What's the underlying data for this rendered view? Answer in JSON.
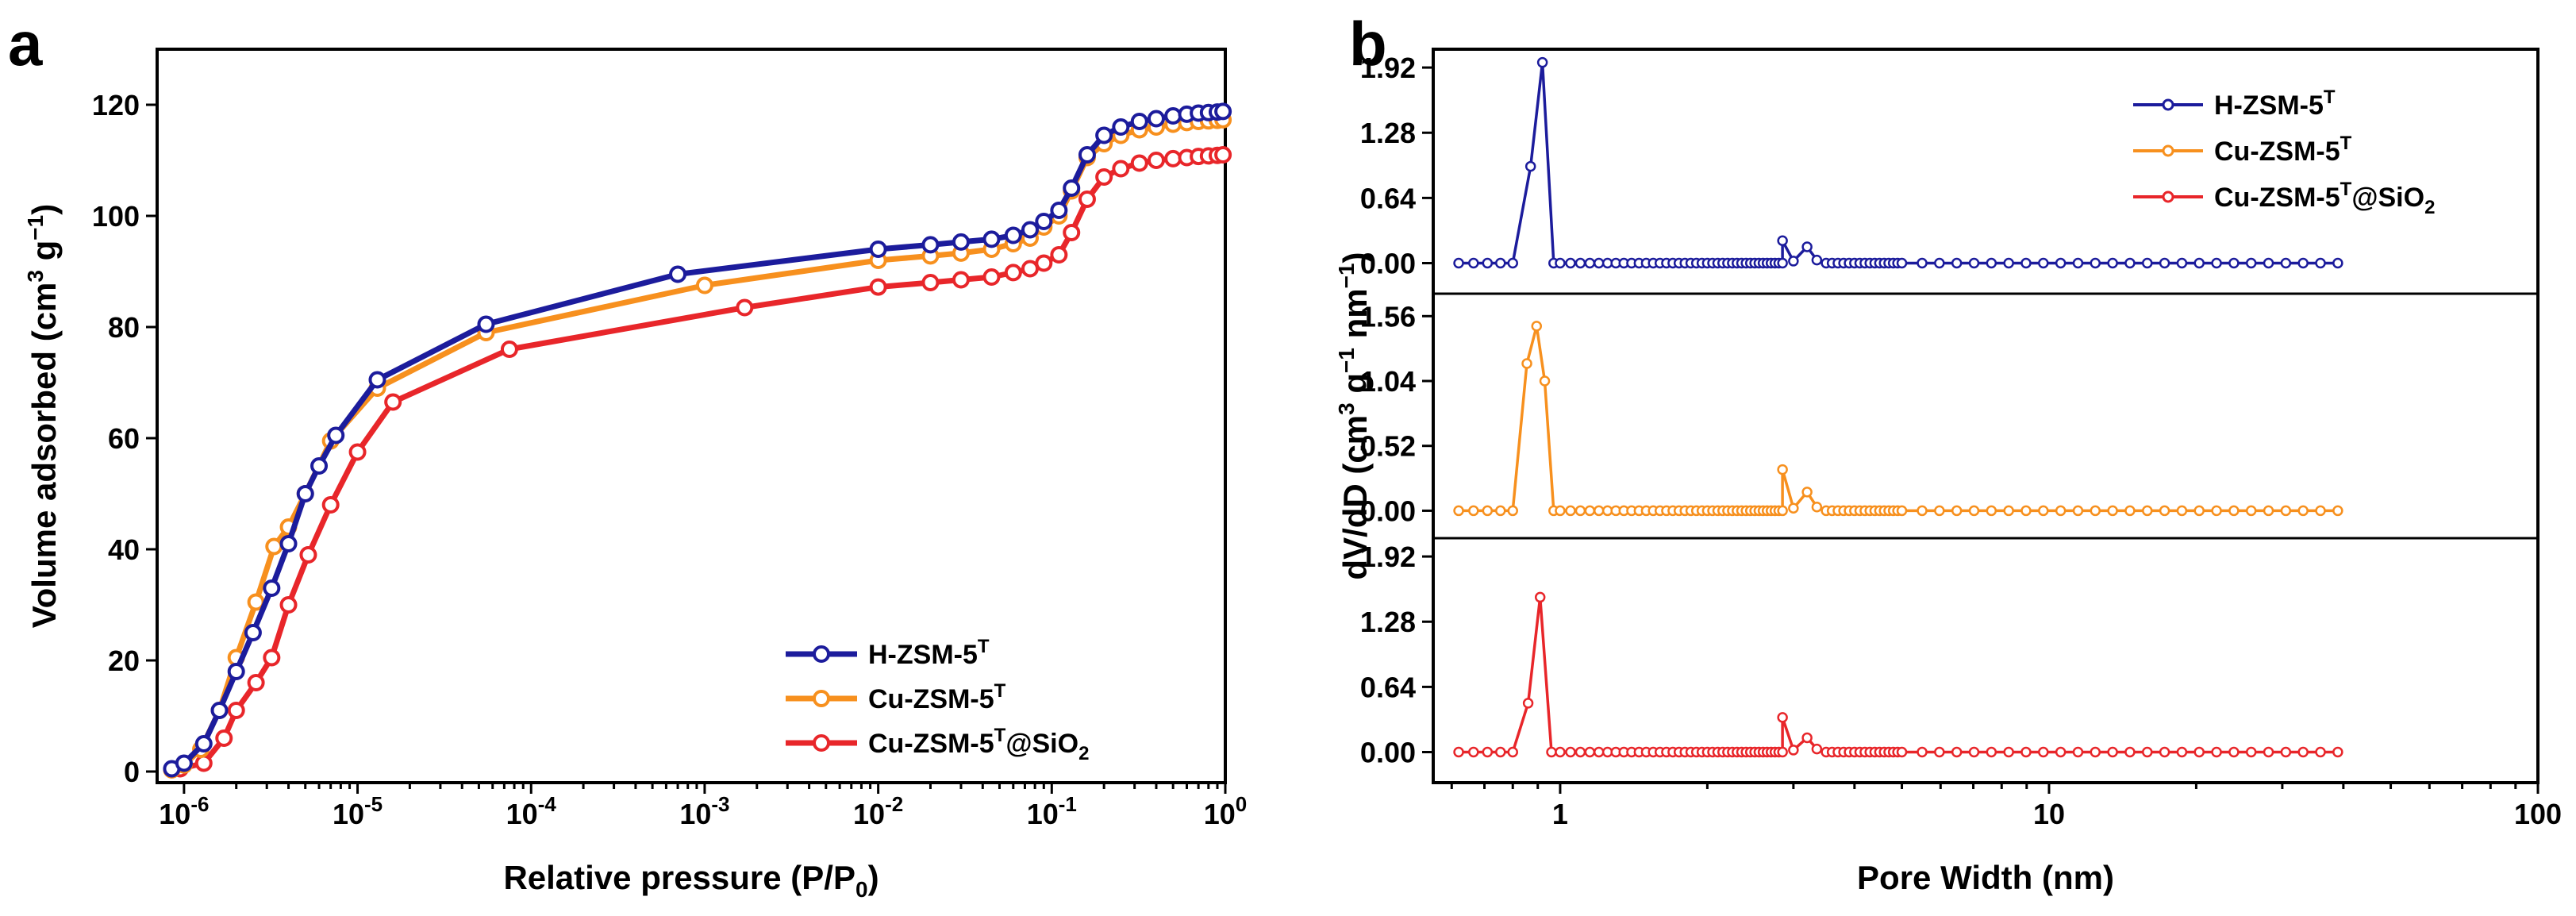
{
  "chart_data": [
    {
      "type": "line",
      "panel_label": "a",
      "title": "",
      "xlabel": "Relative pressure (P/P",
      "xlabel_sub": "0",
      "xlabel_end": ")",
      "ylabel": "Volume adsorbed (cm",
      "ylabel_sup": "3",
      "ylabel_mid": " g",
      "ylabel_sup2": "−1",
      "ylabel_end": ")",
      "xscale": "log",
      "xlim": [
        7e-07,
        1.0
      ],
      "ylim": [
        -2,
        130
      ],
      "x_ticks": [
        {
          "value": 1e-06,
          "base": "10",
          "exp": "-6"
        },
        {
          "value": 1e-05,
          "base": "10",
          "exp": "-5"
        },
        {
          "value": 0.0001,
          "base": "10",
          "exp": "-4"
        },
        {
          "value": 0.001,
          "base": "10",
          "exp": "-3"
        },
        {
          "value": 0.01,
          "base": "10",
          "exp": "-2"
        },
        {
          "value": 0.1,
          "base": "10",
          "exp": "-1"
        },
        {
          "value": 1,
          "base": "10",
          "exp": "0"
        }
      ],
      "y_ticks": [
        0,
        20,
        40,
        60,
        80,
        100,
        120
      ],
      "legend_position": "bottom-right",
      "series": [
        {
          "name": "H-ZSM-5",
          "sup": "T",
          "sub": "",
          "color": "#1c1c9c",
          "x": [
            8.5e-07,
            1e-06,
            1.3e-06,
            1.6e-06,
            2e-06,
            2.5e-06,
            3.2e-06,
            4e-06,
            5e-06,
            6e-06,
            7.5e-06,
            1.3e-05,
            5.5e-05,
            0.0007,
            0.01,
            0.02,
            0.03,
            0.045,
            0.06,
            0.075,
            0.09,
            0.11,
            0.13,
            0.16,
            0.2,
            0.25,
            0.32,
            0.4,
            0.5,
            0.6,
            0.7,
            0.8,
            0.9,
            0.97
          ],
          "y": [
            0.5,
            1.5,
            5,
            11,
            18,
            25,
            33,
            41,
            50,
            55,
            60.5,
            70.5,
            80.5,
            89.5,
            94,
            94.8,
            95.3,
            95.8,
            96.5,
            97.5,
            99,
            101,
            105,
            111,
            114.5,
            116,
            117,
            117.5,
            118,
            118.3,
            118.5,
            118.6,
            118.7,
            118.8
          ]
        },
        {
          "name": "Cu-ZSM-5",
          "sup": "T",
          "sub": "",
          "color": "#f7901e",
          "x": [
            8.5e-07,
            1e-06,
            1.25e-06,
            1.6e-06,
            2e-06,
            2.6e-06,
            3.3e-06,
            4e-06,
            5e-06,
            7e-06,
            1.3e-05,
            5.5e-05,
            0.001,
            0.01,
            0.02,
            0.03,
            0.045,
            0.06,
            0.075,
            0.09,
            0.11,
            0.13,
            0.16,
            0.2,
            0.25,
            0.32,
            0.4,
            0.5,
            0.6,
            0.7,
            0.8,
            0.9,
            0.97
          ],
          "y": [
            0.3,
            1.2,
            4,
            11,
            20.5,
            30.5,
            40.5,
            44,
            50,
            59.5,
            69,
            79,
            87.5,
            92,
            92.8,
            93.3,
            94,
            95,
            96,
            98,
            100,
            104.5,
            110.5,
            113,
            114.5,
            115.5,
            116,
            116.5,
            116.8,
            117,
            117.1,
            117.2,
            117.3
          ]
        },
        {
          "name": "Cu-ZSM-5",
          "sup": "T",
          "sub": "2",
          "suffix": "@SiO",
          "color": "#e8262a",
          "x": [
            9.5e-07,
            1.3e-06,
            1.7e-06,
            2e-06,
            2.6e-06,
            3.2e-06,
            4e-06,
            5.2e-06,
            7e-06,
            1e-05,
            1.6e-05,
            7.5e-05,
            0.0017,
            0.01,
            0.02,
            0.03,
            0.045,
            0.06,
            0.075,
            0.09,
            0.11,
            0.13,
            0.16,
            0.2,
            0.25,
            0.32,
            0.4,
            0.5,
            0.6,
            0.7,
            0.8,
            0.9,
            0.97
          ],
          "y": [
            0.5,
            1.5,
            6,
            11,
            16,
            20.5,
            30,
            39,
            48,
            57.5,
            66.5,
            76,
            83.5,
            87.2,
            88,
            88.5,
            89,
            89.8,
            90.5,
            91.5,
            93,
            97,
            103,
            107,
            108.5,
            109.5,
            110,
            110.3,
            110.5,
            110.7,
            110.8,
            110.9,
            111
          ]
        }
      ]
    },
    {
      "type": "line",
      "panel_label": "b",
      "title": "",
      "xlabel": "Pore Width (nm)",
      "ylabel": "dV/dD (cm",
      "ylabel_sup": "3",
      "ylabel_mid": " g",
      "ylabel_sup2": "−1",
      "ylabel_mid2": " nm",
      "ylabel_sup3": "−1",
      "ylabel_end": ")",
      "xscale": "log",
      "xlim": [
        0.55,
        100
      ],
      "x_ticks": [
        1,
        10,
        100
      ],
      "legend_position": "top-right",
      "subplots": [
        {
          "name": "H-ZSM-5",
          "sup": "T",
          "sub": "",
          "color": "#1c1c9c",
          "ylim": [
            -0.3,
            2.1
          ],
          "y_ticks": [
            "0.00",
            "0.64",
            "1.28",
            "1.92"
          ],
          "peak_x": [
            0.8,
            0.87,
            0.92,
            0.97
          ],
          "peak_y": [
            0.0,
            0.95,
            1.97,
            0.0
          ],
          "secondary_x": [
            2.85,
            3.0,
            3.2,
            3.35
          ],
          "secondary_y": [
            0.22,
            0.02,
            0.16,
            0.03
          ]
        },
        {
          "name": "Cu-ZSM-5",
          "sup": "T",
          "sub": "",
          "color": "#f7901e",
          "ylim": [
            -0.22,
            1.74
          ],
          "y_ticks": [
            "0.00",
            "0.52",
            "1.04",
            "1.56"
          ],
          "peak_x": [
            0.8,
            0.855,
            0.895,
            0.93,
            0.97
          ],
          "peak_y": [
            0.0,
            1.18,
            1.48,
            1.04,
            0.0
          ],
          "secondary_x": [
            2.85,
            3.0,
            3.2,
            3.35
          ],
          "secondary_y": [
            0.33,
            0.02,
            0.15,
            0.03
          ]
        },
        {
          "name": "Cu-ZSM-5",
          "sup": "T",
          "sub": "2",
          "suffix": "@SiO",
          "color": "#e8262a",
          "ylim": [
            -0.3,
            2.1
          ],
          "y_ticks": [
            "0.00",
            "0.64",
            "1.28",
            "1.92"
          ],
          "peak_x": [
            0.8,
            0.86,
            0.91,
            0.96
          ],
          "peak_y": [
            0.0,
            0.48,
            1.52,
            0.0
          ],
          "secondary_x": [
            2.85,
            3.0,
            3.2,
            3.35
          ],
          "secondary_y": [
            0.34,
            0.02,
            0.14,
            0.03
          ]
        }
      ]
    }
  ]
}
